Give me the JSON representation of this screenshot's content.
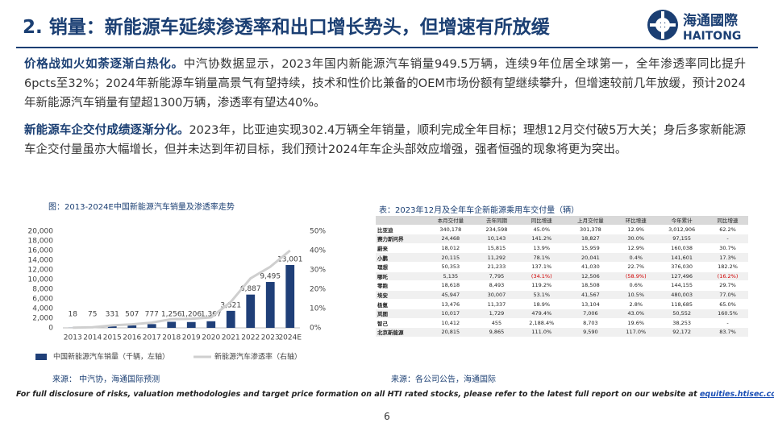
{
  "header": {
    "title": "2. 销量：新能源车延续渗透率和出口增长势头，但增速有所放缓",
    "logo_cn": "海通國際",
    "logo_en": "HAITONG"
  },
  "paragraphs": [
    {
      "lead": "价格战如火如荼逐渐白热化。",
      "text": "中汽协数据显示，2023年国内新能源汽车销量949.5万辆，连续9年位居全球第一，全年渗透率同比提升6pcts至32%；2024年新能源车销量高景气有望持续，技术和性价比兼备的OEM市场份额有望继续攀升，但增速较前几年放缓，预计2024年新能源汽车销量有望超1300万辆，渗透率有望达40%。"
    },
    {
      "lead": "新能源车企交付成绩逐渐分化。",
      "text": "2023年，比亚迪实现302.4万辆全年销量，顺利完成全年目标；理想12月交付破5万大关；身后多家新能源车企交付量虽亦大幅增长，但并未达到年初目标，我们预计2024年车企头部效应增强，强者恒强的现象将更为突出。"
    }
  ],
  "chart_data": {
    "type": "bar",
    "title": "图：2013-2024E中国新能源汽车销量及渗透率走势",
    "categories": [
      "2013",
      "2014",
      "2015",
      "2016",
      "2017",
      "2018",
      "2019",
      "2020",
      "2021",
      "2022",
      "2023",
      "2024E"
    ],
    "series": [
      {
        "name": "中国新能源汽车销量（千辆，左轴）",
        "color": "#1f3f78",
        "values": [
          18,
          75,
          331,
          507,
          777,
          1256,
          1206,
          1367,
          3521,
          6887,
          9495,
          13001
        ],
        "value_labels": [
          "18",
          "75",
          "331",
          "507",
          "777",
          "1,256",
          "1,206",
          "1,367",
          "3,521",
          "6,887",
          "9,495",
          "13,001"
        ]
      },
      {
        "name": "新能源汽车渗透率（右轴）",
        "type": "line",
        "axis": "y2",
        "color": "#cfcfcf",
        "values": [
          0.1,
          0.3,
          1.3,
          1.8,
          2.7,
          4.5,
          4.7,
          5.4,
          13.4,
          25.6,
          31.6,
          40
        ]
      }
    ],
    "ylim": [
      0,
      20000
    ],
    "yticks": [
      0,
      {
        "value": 2000,
        "label": "2,000"
      },
      {
        "value": 4000,
        "label": "4,000"
      },
      {
        "value": 6000,
        "label": "6,000"
      },
      {
        "value": 8000,
        "label": "8,000"
      },
      {
        "value": 10000,
        "label": "10,000"
      },
      {
        "value": 12000,
        "label": "12,000"
      },
      {
        "value": 14000,
        "label": "14,000"
      },
      {
        "value": 16000,
        "label": "16,000"
      },
      {
        "value": 18000,
        "label": "18,000"
      },
      {
        "value": 20000,
        "label": "20,000"
      }
    ],
    "y2lim": [
      0,
      50
    ],
    "y2ticks": [
      {
        "value": 0,
        "label": "0%"
      },
      {
        "value": 10,
        "label": "10%"
      },
      {
        "value": 20,
        "label": "20%"
      },
      {
        "value": 30,
        "label": "30%"
      },
      {
        "value": 40,
        "label": "40%"
      },
      {
        "value": 50,
        "label": "50%"
      }
    ],
    "grid": false,
    "source": "来源： 中汽协，海通国际预测"
  },
  "table": {
    "title": "表：2023年12月及全年车企新能源乘用车交付量（辆）",
    "header": [
      "本月交付量",
      "去年同期",
      "同比增速",
      "上月交付量",
      "环比增速",
      "今年累计",
      "同比增速"
    ],
    "rows": [
      [
        "比亚迪",
        "340,178",
        "234,598",
        "45.0%",
        "301,378",
        "12.9%",
        "3,012,906",
        "62.2%"
      ],
      [
        "赛力斯问界",
        "24,468",
        "10,143",
        "141.2%",
        "18,827",
        "30.0%",
        "97,155",
        "-"
      ],
      [
        "蔚来",
        "18,012",
        "15,815",
        "13.9%",
        "15,959",
        "12.9%",
        "160,038",
        "30.7%"
      ],
      [
        "小鹏",
        "20,115",
        "11,292",
        "78.1%",
        "20,041",
        "0.4%",
        "141,601",
        "17.3%"
      ],
      [
        "理想",
        "50,353",
        "21,233",
        "137.1%",
        "41,030",
        "22.7%",
        "376,030",
        "182.2%"
      ],
      [
        "哪吒",
        "5,135",
        "7,795",
        "(34.1%)",
        "12,506",
        "(58.9%)",
        "127,496",
        "(16.2%)"
      ],
      [
        "零跑",
        "18,618",
        "8,493",
        "119.2%",
        "18,508",
        "0.6%",
        "144,155",
        "29.7%"
      ],
      [
        "埃安",
        "45,947",
        "30,007",
        "53.1%",
        "41,567",
        "10.5%",
        "480,003",
        "77.0%"
      ],
      [
        "极氪",
        "13,476",
        "11,337",
        "18.9%",
        "13,104",
        "2.8%",
        "118,685",
        "65.0%"
      ],
      [
        "岚图",
        "10,017",
        "1,729",
        "479.4%",
        "7,006",
        "43.0%",
        "50,552",
        "160.5%"
      ],
      [
        "智己",
        "10,412",
        "455",
        "2,188.4%",
        "8,703",
        "19.6%",
        "38,253",
        "-"
      ],
      [
        "北京新能源",
        "20,815",
        "9,865",
        "111.0%",
        "9,590",
        "117.0%",
        "92,172",
        "83.7%"
      ]
    ],
    "source": "来源：各公司公告，海通国际"
  },
  "footer": {
    "disclaimer": "For full disclosure of risks, valuation methodologies and target price formation on all HTI rated stocks, please refer to the latest full report on our website at",
    "link": "equities.htisec.com",
    "page": "6"
  }
}
